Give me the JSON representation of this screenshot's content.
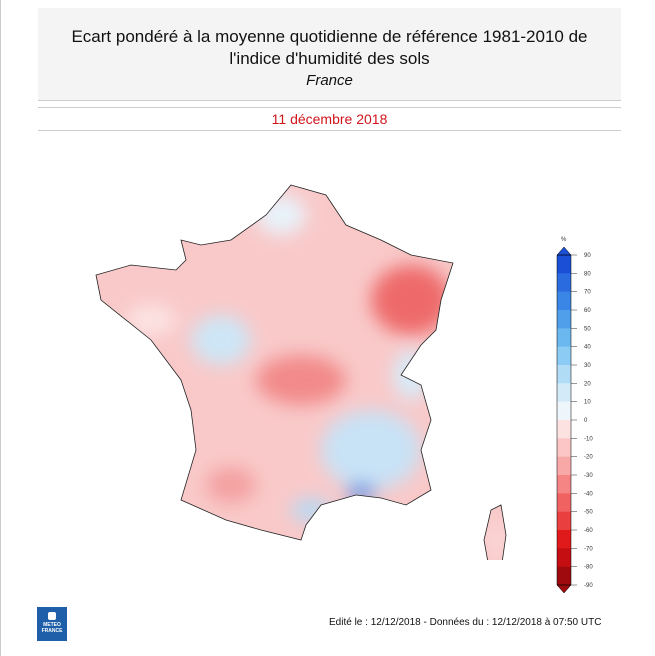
{
  "header": {
    "title_line1": "Ecart pondéré à la moyenne quotidienne de référence 1981-2010 de",
    "title_line2": "l'indice d'humidité des sols",
    "subtitle": "France"
  },
  "date": "11 décembre 2018",
  "legend": {
    "unit": "%",
    "ticks": [
      "90",
      "80",
      "70",
      "60",
      "50",
      "40",
      "30",
      "20",
      "10",
      "0",
      "-10",
      "-20",
      "-30",
      "-40",
      "-50",
      "-60",
      "-70",
      "-80",
      "-90"
    ],
    "colors": [
      "#1a4fd6",
      "#2a6be0",
      "#3a86e6",
      "#4f9fea",
      "#6bb8f0",
      "#8ccbf3",
      "#b0dcf6",
      "#d3ebf9",
      "#eef5fb",
      "#fde2e2",
      "#fcc6c6",
      "#f9a8a8",
      "#f58585",
      "#f06262",
      "#ea3f3f",
      "#e01a1a",
      "#c40e12",
      "#9e0a0e"
    ]
  },
  "footer": {
    "text": "Edité le : 12/12/2018 - Données du : 12/12/2018 à 07:50 UTC"
  },
  "logo": {
    "text": "METEO FRANCE"
  }
}
